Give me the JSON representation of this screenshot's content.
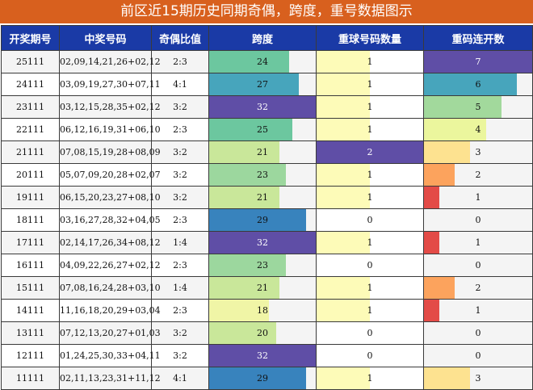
{
  "title": "前区近15期历史同期奇偶，跨度，重号数据图示",
  "headers": [
    "开奖期号",
    "中奖号码",
    "奇偶比值",
    "跨度",
    "重球号码数量",
    "重码连开数"
  ],
  "maxima": {
    "span": 32,
    "repeat": 2,
    "streak": 7
  },
  "rows": [
    {
      "issue": "25111",
      "numbers": "02,09,14,21,26+02,12",
      "ratio": "2:3",
      "span": 24,
      "repeat": 1,
      "streak": 7
    },
    {
      "issue": "24111",
      "numbers": "03,09,19,27,30+07,11",
      "ratio": "4:1",
      "span": 27,
      "repeat": 1,
      "streak": 6
    },
    {
      "issue": "23111",
      "numbers": "03,12,15,28,35+02,12",
      "ratio": "3:2",
      "span": 32,
      "repeat": 1,
      "streak": 5
    },
    {
      "issue": "22111",
      "numbers": "06,12,16,19,31+06,10",
      "ratio": "2:3",
      "span": 25,
      "repeat": 1,
      "streak": 4
    },
    {
      "issue": "21111",
      "numbers": "07,08,15,19,28+08,09",
      "ratio": "3:2",
      "span": 21,
      "repeat": 2,
      "streak": 3
    },
    {
      "issue": "20111",
      "numbers": "05,07,09,20,28+02,07",
      "ratio": "3:2",
      "span": 23,
      "repeat": 1,
      "streak": 2
    },
    {
      "issue": "19111",
      "numbers": "06,15,20,23,27+08,10",
      "ratio": "3:2",
      "span": 21,
      "repeat": 1,
      "streak": 1
    },
    {
      "issue": "18111",
      "numbers": "03,16,27,28,32+04,05",
      "ratio": "2:3",
      "span": 29,
      "repeat": 0,
      "streak": 0
    },
    {
      "issue": "17111",
      "numbers": "02,14,17,26,34+08,12",
      "ratio": "1:4",
      "span": 32,
      "repeat": 1,
      "streak": 1
    },
    {
      "issue": "16111",
      "numbers": "04,09,22,26,27+02,12",
      "ratio": "2:3",
      "span": 23,
      "repeat": 0,
      "streak": 0
    },
    {
      "issue": "15111",
      "numbers": "07,08,16,24,28+03,10",
      "ratio": "1:4",
      "span": 21,
      "repeat": 1,
      "streak": 2
    },
    {
      "issue": "14111",
      "numbers": "11,16,18,20,29+03,04",
      "ratio": "2:3",
      "span": 18,
      "repeat": 1,
      "streak": 1
    },
    {
      "issue": "13111",
      "numbers": "07,12,13,20,27+01,03",
      "ratio": "3:2",
      "span": 20,
      "repeat": 0,
      "streak": 0
    },
    {
      "issue": "12111",
      "numbers": "01,24,25,30,33+04,11",
      "ratio": "3:2",
      "span": 32,
      "repeat": 0,
      "streak": 0
    },
    {
      "issue": "11111",
      "numbers": "02,11,13,23,31+11,12",
      "ratio": "4:1",
      "span": 29,
      "repeat": 1,
      "streak": 3
    }
  ]
}
